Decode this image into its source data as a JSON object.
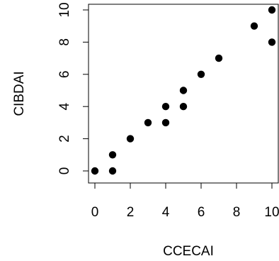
{
  "chart_data": {
    "type": "scatter",
    "title": "",
    "xlabel": "CCECAI",
    "ylabel": "CIBDAI",
    "xlim": [
      0,
      10
    ],
    "ylim": [
      0,
      10
    ],
    "xticks": [
      "0",
      "2",
      "4",
      "6",
      "8",
      "10"
    ],
    "yticks": [
      "0",
      "2",
      "4",
      "6",
      "8",
      "10"
    ],
    "grid": false,
    "legend": "none",
    "colors": {
      "point": "#000000",
      "axis": "#000000",
      "background": "#ffffff"
    },
    "points": [
      {
        "x": 0,
        "y": 0
      },
      {
        "x": 1,
        "y": 0
      },
      {
        "x": 1,
        "y": 1
      },
      {
        "x": 2,
        "y": 2
      },
      {
        "x": 3,
        "y": 3
      },
      {
        "x": 4,
        "y": 3
      },
      {
        "x": 4,
        "y": 4
      },
      {
        "x": 5,
        "y": 4
      },
      {
        "x": 5,
        "y": 5
      },
      {
        "x": 6,
        "y": 6
      },
      {
        "x": 7,
        "y": 7
      },
      {
        "x": 9,
        "y": 9
      },
      {
        "x": 10,
        "y": 10
      },
      {
        "x": 10,
        "y": 8
      }
    ]
  }
}
